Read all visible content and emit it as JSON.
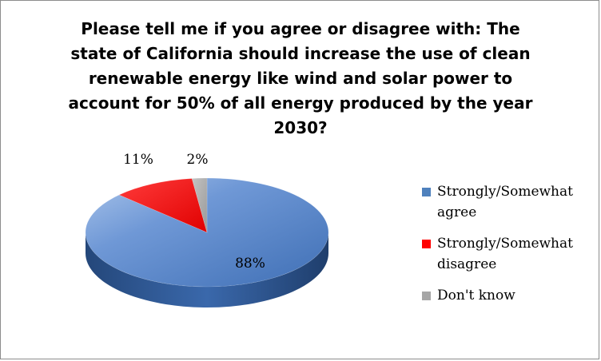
{
  "chart_data": {
    "type": "pie",
    "title": "Please tell me if you agree or disagree with: The\nstate of California should increase the use of clean\nrenewable energy like wind and solar power to\naccount for 50% of all energy produced by the year\n2030?",
    "categories": [
      "Strongly/Somewhat agree",
      "Strongly/Somewhat disagree",
      "Don't know"
    ],
    "values": [
      88,
      11,
      2
    ],
    "data_labels": [
      "88%",
      "11%",
      "2%"
    ],
    "colors": [
      "#4f81bd",
      "#ff0000",
      "#a6a6a6"
    ],
    "legend_position": "right",
    "style": "3d"
  },
  "legend": {
    "items": [
      {
        "label": "Strongly/Somewhat agree",
        "line1": "Strongly/Somewhat",
        "line2": "agree",
        "color": "#4f81bd"
      },
      {
        "label": "Strongly/Somewhat disagree",
        "line1": "Strongly/Somewhat",
        "line2": "disagree",
        "color": "#ff0000"
      },
      {
        "label": "Don't know",
        "line1": "Don't know",
        "line2": "",
        "color": "#a6a6a6"
      }
    ]
  }
}
